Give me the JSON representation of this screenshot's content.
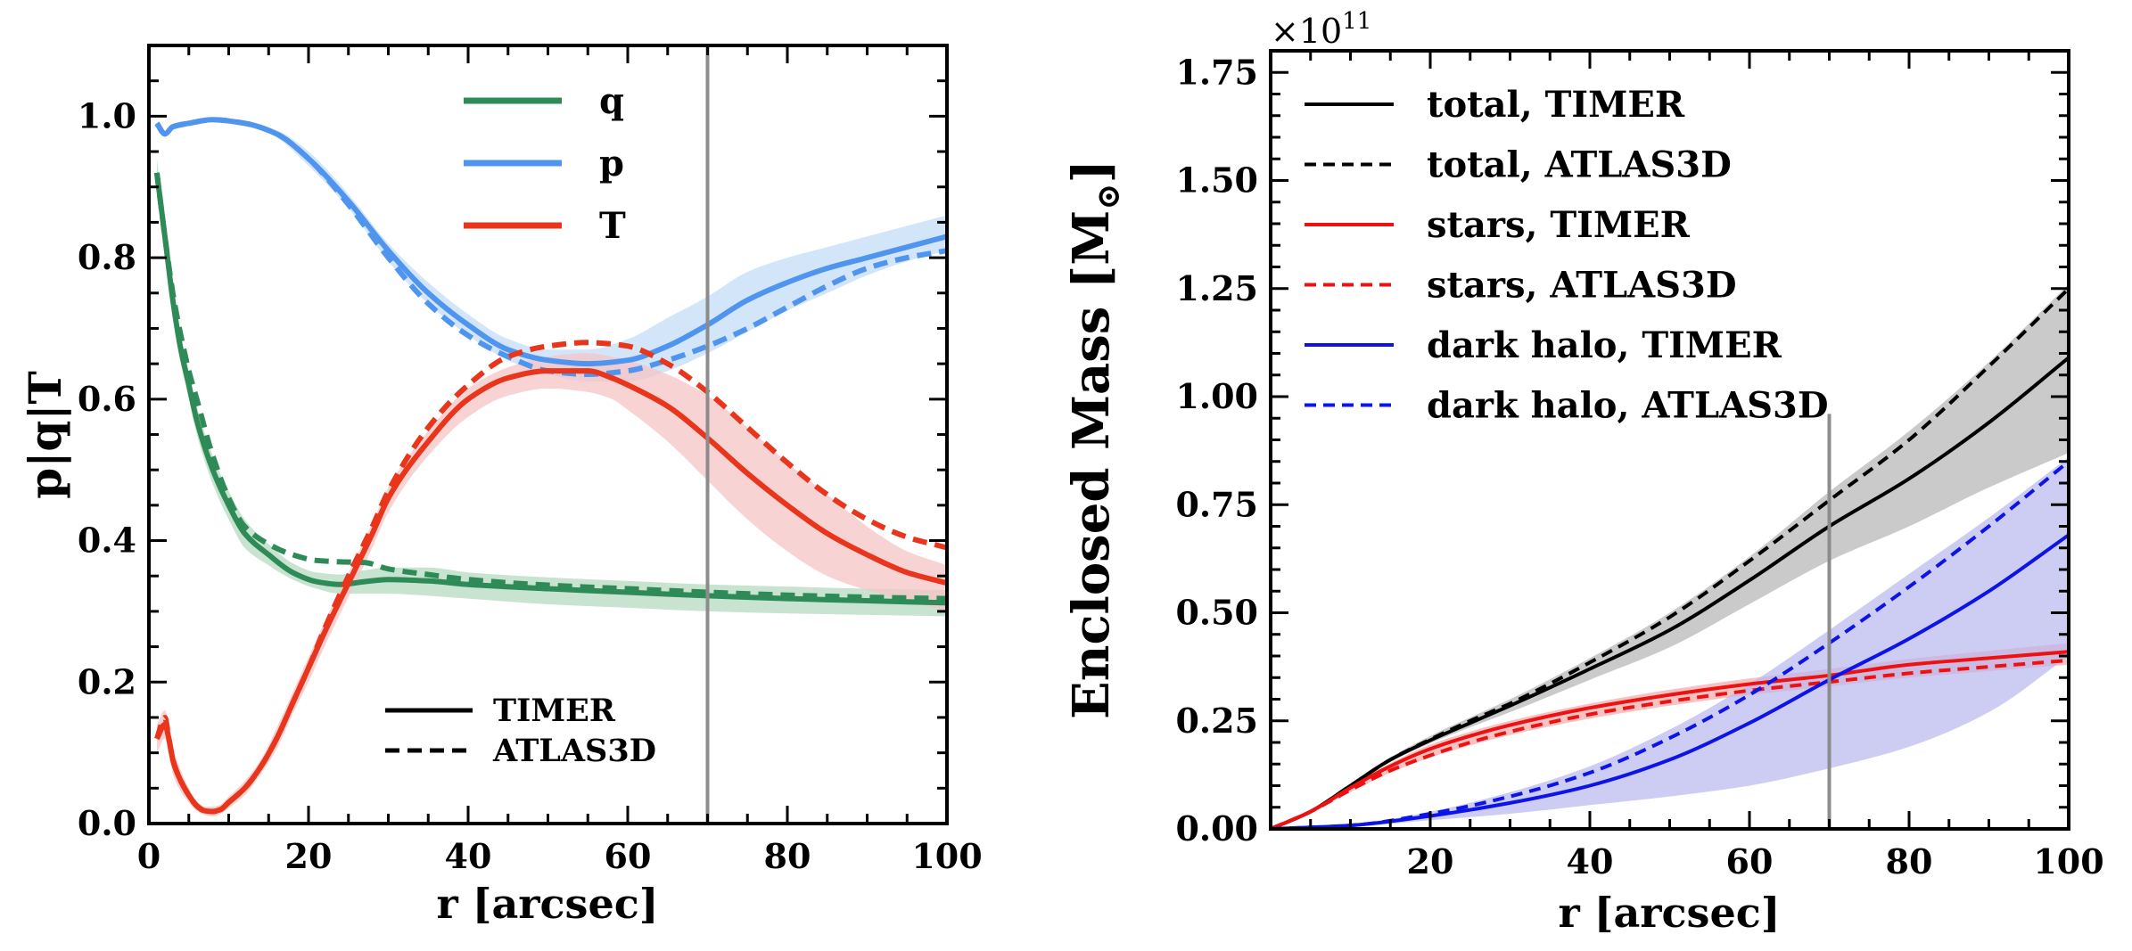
{
  "chart_data": [
    {
      "type": "line",
      "xlabel": "r [arcsec]",
      "ylabel": "p|q|T",
      "xlim": [
        0,
        100
      ],
      "ylim": [
        0,
        1.1
      ],
      "xticks": [
        "0",
        "20",
        "40",
        "60",
        "80",
        "100"
      ],
      "yticks": [
        "0.0",
        "0.2",
        "0.4",
        "0.6",
        "0.8",
        "1.0"
      ],
      "xtick_values": [
        0,
        20,
        40,
        60,
        80,
        100
      ],
      "ytick_values": [
        0,
        0.2,
        0.4,
        0.6,
        0.8,
        1.0
      ],
      "vline": 70,
      "legend_top": [
        {
          "label": "q",
          "color": "#2e8b57"
        },
        {
          "label": "p",
          "color": "#4f95f0"
        },
        {
          "label": "T",
          "color": "#e8351b"
        }
      ],
      "legend_bottom": [
        {
          "label": "TIMER",
          "style": "solid"
        },
        {
          "label": "ATLAS3D",
          "style": "dashed"
        }
      ],
      "series": [
        {
          "name": "q",
          "color": "#2e8b57",
          "band_color": "#b5dbc2",
          "x": [
            1,
            2,
            3,
            4,
            5,
            6,
            8,
            10,
            12,
            15,
            18,
            21,
            24,
            27,
            30,
            35,
            40,
            50,
            60,
            70,
            80,
            90,
            100
          ],
          "timer": [
            0.92,
            0.83,
            0.74,
            0.67,
            0.62,
            0.57,
            0.5,
            0.45,
            0.41,
            0.38,
            0.355,
            0.342,
            0.338,
            0.342,
            0.345,
            0.343,
            0.338,
            0.332,
            0.327,
            0.322,
            0.318,
            0.315,
            0.312
          ],
          "atlas": [
            0.92,
            0.83,
            0.75,
            0.69,
            0.64,
            0.6,
            0.52,
            0.46,
            0.42,
            0.395,
            0.38,
            0.372,
            0.37,
            0.369,
            0.36,
            0.352,
            0.345,
            0.337,
            0.332,
            0.327,
            0.323,
            0.32,
            0.318
          ],
          "lo": [
            0.9,
            0.81,
            0.72,
            0.65,
            0.6,
            0.55,
            0.48,
            0.43,
            0.39,
            0.365,
            0.345,
            0.332,
            0.325,
            0.325,
            0.325,
            0.322,
            0.318,
            0.31,
            0.305,
            0.3,
            0.297,
            0.295,
            0.293
          ],
          "hi": [
            0.94,
            0.85,
            0.76,
            0.69,
            0.64,
            0.59,
            0.52,
            0.47,
            0.43,
            0.395,
            0.368,
            0.355,
            0.352,
            0.358,
            0.362,
            0.362,
            0.355,
            0.348,
            0.343,
            0.338,
            0.335,
            0.332,
            0.33
          ]
        },
        {
          "name": "p",
          "color": "#4f95f0",
          "band_color": "#c4dcf6",
          "x": [
            1,
            2,
            3,
            5,
            8,
            12,
            16,
            20,
            25,
            30,
            35,
            40,
            45,
            50,
            55,
            60,
            65,
            70,
            75,
            80,
            85,
            90,
            95,
            100
          ],
          "timer": [
            0.99,
            0.975,
            0.985,
            0.99,
            0.995,
            0.99,
            0.975,
            0.94,
            0.88,
            0.81,
            0.75,
            0.705,
            0.67,
            0.655,
            0.65,
            0.655,
            0.675,
            0.705,
            0.74,
            0.765,
            0.785,
            0.8,
            0.815,
            0.83
          ],
          "atlas": [
            0.99,
            0.975,
            0.985,
            0.99,
            0.995,
            0.99,
            0.975,
            0.94,
            0.875,
            0.8,
            0.735,
            0.69,
            0.66,
            0.64,
            0.635,
            0.64,
            0.655,
            0.675,
            0.7,
            0.73,
            0.76,
            0.785,
            0.8,
            0.81
          ],
          "lo": [
            0.99,
            0.975,
            0.985,
            0.99,
            0.995,
            0.99,
            0.97,
            0.93,
            0.87,
            0.795,
            0.735,
            0.69,
            0.655,
            0.635,
            0.625,
            0.625,
            0.64,
            0.665,
            0.695,
            0.725,
            0.75,
            0.775,
            0.795,
            0.81
          ],
          "hi": [
            0.99,
            0.975,
            0.985,
            0.99,
            0.995,
            0.99,
            0.98,
            0.95,
            0.89,
            0.82,
            0.765,
            0.72,
            0.685,
            0.67,
            0.67,
            0.685,
            0.715,
            0.745,
            0.78,
            0.8,
            0.815,
            0.83,
            0.845,
            0.86
          ]
        },
        {
          "name": "T",
          "color": "#e8351b",
          "band_color": "#f6c4c4",
          "x": [
            1,
            2,
            2.5,
            3,
            4,
            5,
            6,
            7,
            8,
            9,
            10,
            12,
            14,
            16,
            18,
            20,
            22,
            25,
            28,
            30,
            35,
            40,
            45,
            50,
            55,
            58,
            60,
            65,
            70,
            75,
            80,
            85,
            90,
            95,
            100
          ],
          "timer": [
            0.12,
            0.14,
            0.12,
            0.09,
            0.06,
            0.04,
            0.025,
            0.018,
            0.017,
            0.02,
            0.03,
            0.05,
            0.08,
            0.12,
            0.17,
            0.22,
            0.27,
            0.34,
            0.41,
            0.46,
            0.54,
            0.6,
            0.63,
            0.64,
            0.64,
            0.63,
            0.62,
            0.59,
            0.545,
            0.495,
            0.45,
            0.41,
            0.38,
            0.355,
            0.34
          ],
          "atlas": [
            0.12,
            0.15,
            0.12,
            0.09,
            0.06,
            0.04,
            0.025,
            0.018,
            0.017,
            0.02,
            0.03,
            0.05,
            0.08,
            0.12,
            0.17,
            0.22,
            0.275,
            0.35,
            0.42,
            0.47,
            0.56,
            0.62,
            0.66,
            0.675,
            0.68,
            0.678,
            0.675,
            0.65,
            0.61,
            0.56,
            0.51,
            0.465,
            0.43,
            0.405,
            0.39
          ],
          "lo": [
            0.1,
            0.12,
            0.1,
            0.07,
            0.045,
            0.03,
            0.018,
            0.012,
            0.01,
            0.014,
            0.022,
            0.04,
            0.07,
            0.105,
            0.155,
            0.2,
            0.25,
            0.32,
            0.39,
            0.44,
            0.52,
            0.575,
            0.605,
            0.615,
            0.61,
            0.6,
            0.585,
            0.54,
            0.485,
            0.43,
            0.385,
            0.35,
            0.33,
            0.315,
            0.3
          ],
          "hi": [
            0.14,
            0.16,
            0.14,
            0.11,
            0.075,
            0.05,
            0.032,
            0.024,
            0.024,
            0.027,
            0.038,
            0.06,
            0.09,
            0.135,
            0.185,
            0.235,
            0.285,
            0.355,
            0.425,
            0.475,
            0.555,
            0.615,
            0.645,
            0.66,
            0.665,
            0.66,
            0.655,
            0.635,
            0.605,
            0.56,
            0.51,
            0.465,
            0.42,
            0.385,
            0.365
          ]
        }
      ]
    },
    {
      "type": "line",
      "xlabel": "r [arcsec]",
      "ylabel": "Enclosed Mass [M",
      "ylabel_symbol": "⊙",
      "ylabel_close": "]",
      "offset_text": "×10",
      "offset_exp": "11",
      "xlim": [
        0,
        100
      ],
      "ylim": [
        0,
        1.8
      ],
      "xticks": [
        "20",
        "40",
        "60",
        "80",
        "100"
      ],
      "xtick_values": [
        20,
        40,
        60,
        80,
        100
      ],
      "yticks": [
        "0.00",
        "0.25",
        "0.50",
        "0.75",
        "1.00",
        "1.25",
        "1.50",
        "1.75"
      ],
      "ytick_values": [
        0,
        0.25,
        0.5,
        0.75,
        1.0,
        1.25,
        1.5,
        1.75
      ],
      "vline": 70,
      "vline_top": 0.96,
      "legend": [
        {
          "label": "total, TIMER",
          "color": "#000000",
          "style": "solid"
        },
        {
          "label": "total, ATLAS3D",
          "color": "#000000",
          "style": "dashed"
        },
        {
          "label": "stars, TIMER",
          "color": "#ee1111",
          "style": "solid"
        },
        {
          "label": "stars, ATLAS3D",
          "color": "#ee1111",
          "style": "dashed"
        },
        {
          "label": "dark halo, TIMER",
          "color": "#0c14e8",
          "style": "solid"
        },
        {
          "label": "dark halo, ATLAS3D",
          "color": "#0c14e8",
          "style": "dashed"
        }
      ],
      "series": [
        {
          "name": "total",
          "color": "#000000",
          "band_color": "#b3b3b3",
          "x": [
            0,
            5,
            10,
            15,
            20,
            25,
            30,
            40,
            50,
            60,
            70,
            80,
            90,
            100
          ],
          "timer": [
            0,
            0.04,
            0.1,
            0.16,
            0.205,
            0.245,
            0.285,
            0.37,
            0.46,
            0.575,
            0.7,
            0.81,
            0.94,
            1.09
          ],
          "atlas": [
            0,
            0.04,
            0.1,
            0.16,
            0.207,
            0.25,
            0.29,
            0.385,
            0.49,
            0.62,
            0.76,
            0.9,
            1.07,
            1.25
          ],
          "lo": [
            0,
            0.04,
            0.1,
            0.155,
            0.198,
            0.235,
            0.27,
            0.345,
            0.42,
            0.52,
            0.62,
            0.7,
            0.79,
            0.87
          ],
          "hi": [
            0,
            0.04,
            0.1,
            0.165,
            0.215,
            0.258,
            0.3,
            0.395,
            0.5,
            0.63,
            0.78,
            0.92,
            1.08,
            1.26
          ]
        },
        {
          "name": "stars",
          "color": "#ee1111",
          "band_color": "#f4a8a8",
          "x": [
            0,
            5,
            10,
            15,
            20,
            25,
            30,
            40,
            50,
            60,
            70,
            80,
            90,
            100
          ],
          "timer": [
            0,
            0.04,
            0.095,
            0.145,
            0.185,
            0.215,
            0.24,
            0.28,
            0.31,
            0.335,
            0.355,
            0.38,
            0.395,
            0.41
          ],
          "atlas": [
            0,
            0.04,
            0.09,
            0.135,
            0.17,
            0.2,
            0.225,
            0.265,
            0.295,
            0.32,
            0.34,
            0.36,
            0.375,
            0.39
          ],
          "lo": [
            0,
            0.038,
            0.085,
            0.13,
            0.165,
            0.193,
            0.217,
            0.255,
            0.285,
            0.31,
            0.33,
            0.35,
            0.365,
            0.38
          ],
          "hi": [
            0,
            0.043,
            0.1,
            0.152,
            0.195,
            0.225,
            0.25,
            0.29,
            0.322,
            0.348,
            0.37,
            0.393,
            0.412,
            0.43
          ]
        },
        {
          "name": "dark halo",
          "color": "#0c14e8",
          "band_color": "#b8b8f0",
          "x": [
            0,
            10,
            20,
            30,
            40,
            50,
            60,
            70,
            80,
            90,
            100
          ],
          "timer": [
            0,
            0.008,
            0.03,
            0.06,
            0.1,
            0.16,
            0.245,
            0.345,
            0.44,
            0.55,
            0.68
          ],
          "atlas": [
            0,
            0.008,
            0.035,
            0.075,
            0.13,
            0.21,
            0.31,
            0.43,
            0.56,
            0.7,
            0.85
          ],
          "lo": [
            0,
            0.005,
            0.02,
            0.035,
            0.055,
            0.075,
            0.1,
            0.14,
            0.19,
            0.27,
            0.4
          ],
          "hi": [
            0,
            0.01,
            0.04,
            0.085,
            0.145,
            0.23,
            0.335,
            0.46,
            0.59,
            0.72,
            0.86
          ]
        }
      ]
    }
  ]
}
